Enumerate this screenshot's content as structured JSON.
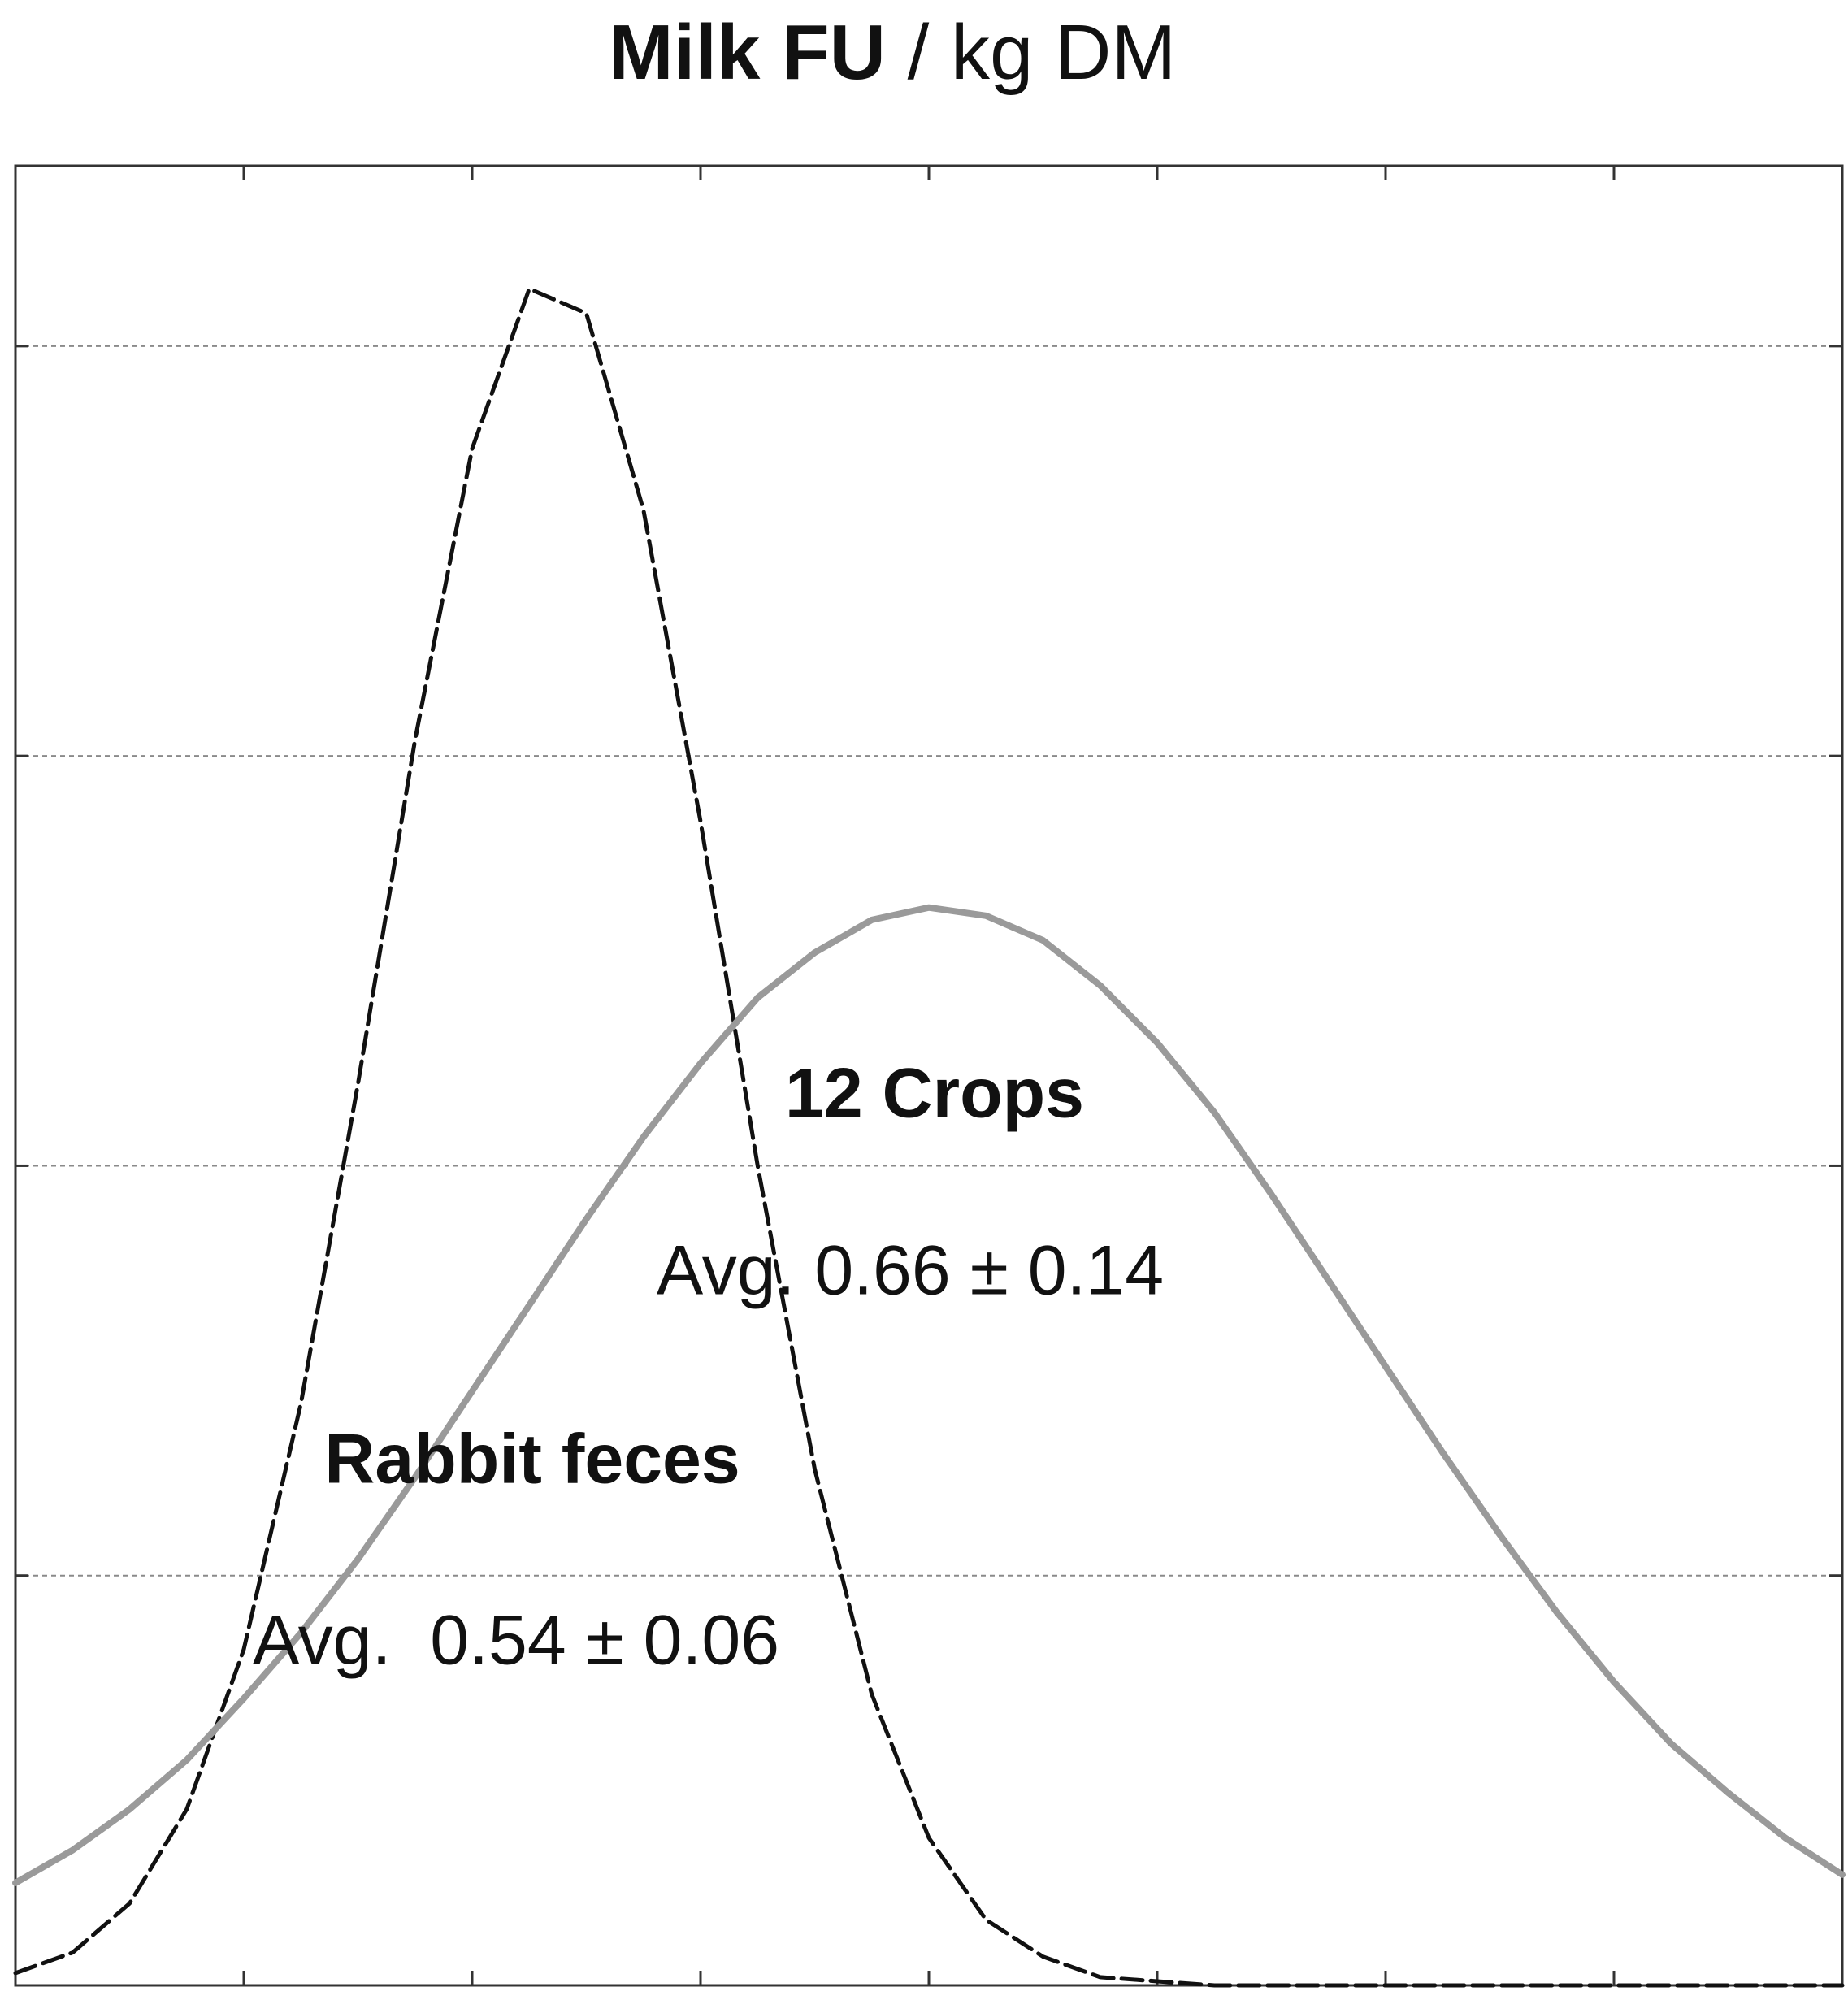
{
  "chart_data": {
    "type": "line",
    "title": "Milk FU",
    "title_units": "/ kg DM",
    "annotations": [
      "12 Crops",
      "Avg. 0.66 ± 0.14",
      "Rabbit feces",
      "Avg.  0.54 ± 0.06"
    ],
    "x": [
      0,
      0.25,
      0.5,
      0.75,
      1,
      1.25,
      1.5,
      1.75,
      2,
      2.25,
      2.5,
      2.75,
      3,
      3.25,
      3.5,
      3.75,
      4,
      4.25,
      4.5,
      4.75,
      5,
      5.25,
      5.5,
      5.75,
      6,
      6.25,
      6.5,
      6.75,
      7,
      7.25,
      7.5,
      7.75,
      8
    ],
    "series": [
      {
        "color": "#111111",
        "dashed": true,
        "values": [
          0.03,
          0.08,
          0.2,
          0.43,
          0.82,
          1.42,
          2.2,
          3.04,
          3.75,
          4.14,
          4.08,
          3.6,
          2.84,
          2.0,
          1.26,
          0.71,
          0.36,
          0.16,
          0.07,
          0.02,
          0.01,
          0,
          0,
          0,
          0,
          0,
          0,
          0,
          0,
          0,
          0,
          0,
          0
        ]
      },
      {
        "color": "#9a9a9a",
        "dashed": false,
        "values": [
          0.25,
          0.33,
          0.43,
          0.55,
          0.7,
          0.86,
          1.04,
          1.24,
          1.45,
          1.66,
          1.87,
          2.07,
          2.25,
          2.41,
          2.52,
          2.6,
          2.63,
          2.61,
          2.55,
          2.44,
          2.3,
          2.13,
          1.93,
          1.72,
          1.51,
          1.3,
          1.1,
          0.91,
          0.74,
          0.59,
          0.47,
          0.36,
          0.27
        ]
      }
    ],
    "xlim": [
      0,
      8
    ],
    "xticks": [
      1,
      2,
      3,
      4,
      5,
      6,
      7
    ],
    "ylim": [
      0,
      4.44
    ],
    "yticks": [
      1,
      2,
      3,
      4
    ],
    "grid": true
  }
}
